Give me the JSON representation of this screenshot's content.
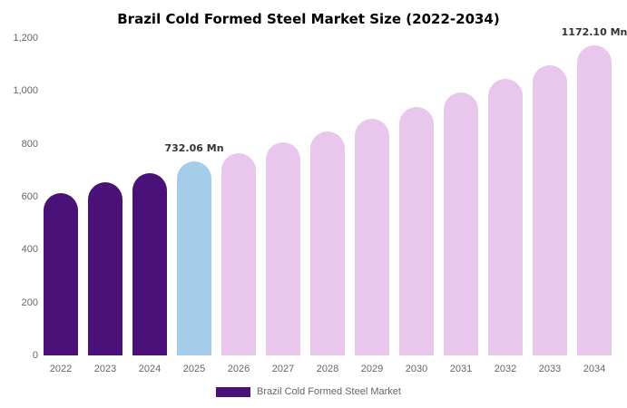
{
  "chart_data": {
    "type": "bar",
    "title": "Brazil Cold Formed Steel Market Size (2022-2034)",
    "categories": [
      "2022",
      "2023",
      "2024",
      "2025",
      "2026",
      "2027",
      "2028",
      "2029",
      "2030",
      "2031",
      "2032",
      "2033",
      "2034"
    ],
    "values": [
      615,
      655,
      690,
      732.06,
      765,
      805,
      848,
      895,
      940,
      993,
      1045,
      1098,
      1172.1
    ],
    "unit": "Mn",
    "bar_colors": [
      "#4a1279",
      "#4a1279",
      "#4a1279",
      "#a5cce8",
      "#e9c6eb",
      "#e9c6eb",
      "#e9c6eb",
      "#e9c6eb",
      "#e9c6eb",
      "#e9c6eb",
      "#e9c6eb",
      "#e9c6eb",
      "#e9c6eb"
    ],
    "ylim": [
      0,
      1200
    ],
    "y_ticks": [
      {
        "value": 0,
        "label": "0"
      },
      {
        "value": 200,
        "label": "200"
      },
      {
        "value": 400,
        "label": "400"
      },
      {
        "value": 600,
        "label": "600"
      },
      {
        "value": 800,
        "label": "800"
      },
      {
        "value": 1000,
        "label": "1,000"
      },
      {
        "value": 1200,
        "label": "1,200"
      }
    ],
    "grid": false,
    "annotations": [
      {
        "category": "2025",
        "label": "732.06 Mn"
      },
      {
        "category": "2034",
        "label": "1172.10 Mn"
      }
    ],
    "legend": {
      "label": "Brazil Cold Formed Steel Market",
      "swatch_color": "#4a1279",
      "position": "bottom"
    },
    "colors": {
      "historical": "#4a1279",
      "highlight": "#a5cce8",
      "forecast": "#e9c6eb",
      "axis_text": "#666666",
      "title_text": "#000000",
      "annotation_text": "#333333"
    }
  }
}
